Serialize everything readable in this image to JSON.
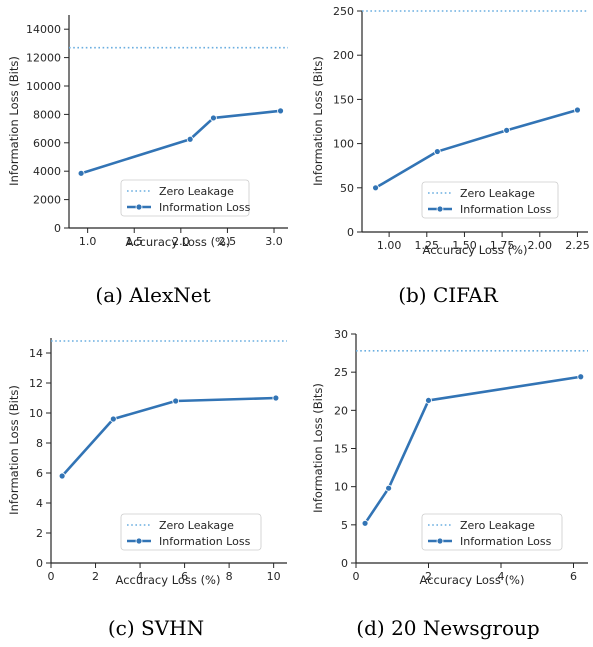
{
  "colors": {
    "line": "#3274b5",
    "zero_line": "#6aaee0",
    "axis": "#262626"
  },
  "chart_data": [
    {
      "type": "line",
      "caption": "(a) AlexNet",
      "xlabel": "Accuracy Loss (%)",
      "ylabel": "Information Loss (Bits)",
      "xlim": [
        0.8,
        3.15
      ],
      "ylim": [
        0,
        15000
      ],
      "xticks": [
        1.0,
        1.5,
        2.0,
        2.5,
        3.0
      ],
      "xtick_labels": [
        "1.0",
        "1.5",
        "2.0",
        "2.5",
        "3.0"
      ],
      "yticks": [
        0,
        2000,
        4000,
        6000,
        8000,
        10000,
        12000,
        14000
      ],
      "ytick_labels": [
        "0",
        "2000",
        "4000",
        "6000",
        "8000",
        "10000",
        "12000",
        "14000"
      ],
      "zero_leakage": 12700,
      "series": [
        {
          "name": "Information Loss",
          "x": [
            0.93,
            2.1,
            2.35,
            3.07
          ],
          "y": [
            3850,
            6250,
            7750,
            8250
          ]
        }
      ],
      "legend": {
        "placement": "lower-right",
        "entries": [
          "Zero Leakage",
          "Information Loss"
        ]
      },
      "grid": false
    },
    {
      "type": "line",
      "caption": "(b) CIFAR",
      "xlabel": "Accuracy Loss (%)",
      "ylabel": "Information Loss (Bits)",
      "xlim": [
        0.82,
        2.32
      ],
      "ylim": [
        0,
        250
      ],
      "xticks": [
        1.0,
        1.25,
        1.5,
        1.75,
        2.0,
        2.25
      ],
      "xtick_labels": [
        "1.00",
        "1.25",
        "1.50",
        "1.75",
        "2.00",
        "2.25"
      ],
      "yticks": [
        0,
        50,
        100,
        150,
        200,
        250
      ],
      "ytick_labels": [
        "0",
        "50",
        "100",
        "150",
        "200",
        "250"
      ],
      "zero_leakage": 250,
      "series": [
        {
          "name": "Information Loss",
          "x": [
            0.91,
            1.32,
            1.78,
            2.25
          ],
          "y": [
            50,
            91,
            115,
            138
          ]
        }
      ],
      "legend": {
        "placement": "lower-right",
        "entries": [
          "Zero Leakage",
          "Information Loss"
        ]
      },
      "grid": false
    },
    {
      "type": "line",
      "caption": "(c) SVHN",
      "xlabel": "Accuracy Loss (%)",
      "ylabel": "Information Loss (Bits)",
      "xlim": [
        0,
        10.6
      ],
      "ylim": [
        0,
        15
      ],
      "xticks": [
        0,
        2,
        4,
        6,
        8,
        10
      ],
      "xtick_labels": [
        "0",
        "2",
        "4",
        "6",
        "8",
        "10"
      ],
      "yticks": [
        0,
        2,
        4,
        6,
        8,
        10,
        12,
        14
      ],
      "ytick_labels": [
        "0",
        "2",
        "4",
        "6",
        "8",
        "10",
        "12",
        "14"
      ],
      "zero_leakage": 14.8,
      "series": [
        {
          "name": "Information Loss",
          "x": [
            0.5,
            2.8,
            5.6,
            10.1
          ],
          "y": [
            5.8,
            9.6,
            10.8,
            11.0
          ]
        }
      ],
      "legend": {
        "placement": "lower-right",
        "entries": [
          "Zero Leakage",
          "Information Loss"
        ]
      },
      "grid": false
    },
    {
      "type": "line",
      "caption": "(d) 20 Newsgroup",
      "xlabel": "Accuracy Loss (%)",
      "ylabel": "Information Loss (Bits)",
      "xlim": [
        0,
        6.4
      ],
      "ylim": [
        0,
        30
      ],
      "xticks": [
        0,
        2,
        4,
        6
      ],
      "xtick_labels": [
        "0",
        "2",
        "4",
        "6"
      ],
      "yticks": [
        0,
        5,
        10,
        15,
        20,
        25,
        30
      ],
      "ytick_labels": [
        "0",
        "5",
        "10",
        "15",
        "20",
        "25",
        "30"
      ],
      "zero_leakage": 27.8,
      "series": [
        {
          "name": "Information Loss",
          "x": [
            0.25,
            0.9,
            2.0,
            6.2
          ],
          "y": [
            5.2,
            9.8,
            21.3,
            24.4
          ]
        }
      ],
      "legend": {
        "placement": "lower-right",
        "entries": [
          "Zero Leakage",
          "Information Loss"
        ]
      },
      "grid": false
    }
  ]
}
